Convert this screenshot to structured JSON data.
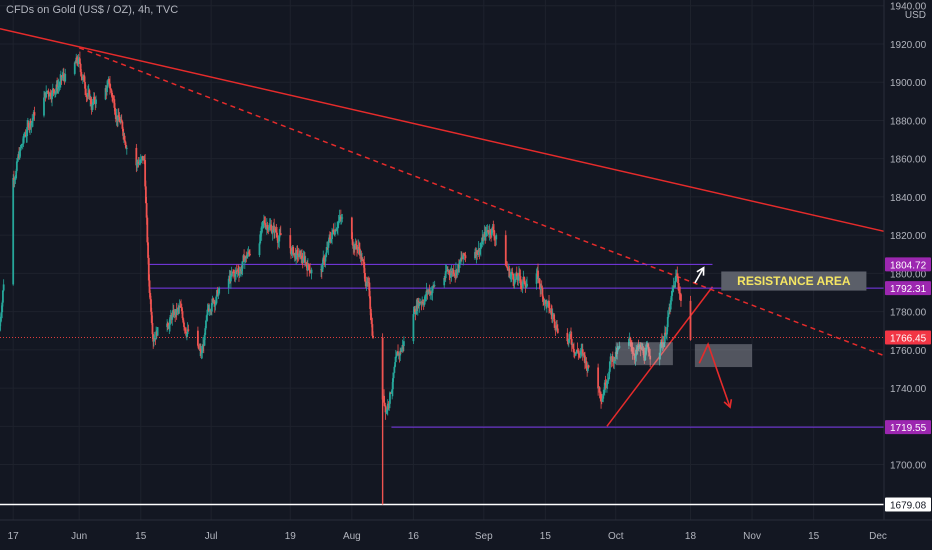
{
  "header": {
    "title": "CFDs on Gold (US$ / OZ), 4h, TVC"
  },
  "currency": "USD",
  "colors": {
    "background": "#131722",
    "grid": "#1e222d",
    "up": "#26a69a",
    "down": "#ef5350",
    "trendline": "#e52b2b",
    "level": "#7c3aed",
    "axis_text": "#b2b5be"
  },
  "chart_data": {
    "type": "candlestick",
    "symbol": "CFDs on Gold (US$ / OZ)",
    "timeframe": "4h",
    "source": "TVC",
    "y_ticks": [
      1700,
      1720,
      1740,
      1760,
      1780,
      1800,
      1820,
      1840,
      1860,
      1880,
      1900,
      1920,
      1940
    ],
    "y_tick_labels": [
      "1700.00",
      "1720.00",
      "1740.00",
      "1760.00",
      "1780.00",
      "1800.00",
      "1820.00",
      "1840.00",
      "1860.00",
      "1880.00",
      "1900.00",
      "1920.00",
      "1940.00"
    ],
    "ylim": [
      1671,
      1943
    ],
    "x_labels": [
      {
        "label": "17",
        "date": "2021-05-17"
      },
      {
        "label": "Jun",
        "date": "2021-06-01"
      },
      {
        "label": "15",
        "date": "2021-06-15"
      },
      {
        "label": "Jul",
        "date": "2021-07-01"
      },
      {
        "label": "19",
        "date": "2021-07-19"
      },
      {
        "label": "Aug",
        "date": "2021-08-02"
      },
      {
        "label": "16",
        "date": "2021-08-16"
      },
      {
        "label": "Sep",
        "date": "2021-09-01"
      },
      {
        "label": "15",
        "date": "2021-09-15"
      },
      {
        "label": "Oct",
        "date": "2021-10-01"
      },
      {
        "label": "18",
        "date": "2021-10-18"
      },
      {
        "label": "Nov",
        "date": "2021-11-01"
      },
      {
        "label": "15",
        "date": "2021-11-15"
      },
      {
        "label": "Dec",
        "date": "2021-12-01"
      }
    ],
    "xlim": [
      "2021-05-14",
      "2021-12-01"
    ],
    "price_path": [
      [
        "2021-05-14",
        1770
      ],
      [
        "2021-05-17",
        1850
      ],
      [
        "2021-05-21",
        1880
      ],
      [
        "2021-05-25",
        1895
      ],
      [
        "2021-05-28",
        1900
      ],
      [
        "2021-06-01",
        1910
      ],
      [
        "2021-06-04",
        1888
      ],
      [
        "2021-06-08",
        1898
      ],
      [
        "2021-06-11",
        1875
      ],
      [
        "2021-06-14",
        1860
      ],
      [
        "2021-06-16",
        1858
      ],
      [
        "2021-06-17",
        1795
      ],
      [
        "2021-06-18",
        1770
      ],
      [
        "2021-06-24",
        1780
      ],
      [
        "2021-06-29",
        1756
      ],
      [
        "2021-07-01",
        1785
      ],
      [
        "2021-07-07",
        1800
      ],
      [
        "2021-07-14",
        1827
      ],
      [
        "2021-07-20",
        1810
      ],
      [
        "2021-07-26",
        1800
      ],
      [
        "2021-07-30",
        1830
      ],
      [
        "2021-08-04",
        1812
      ],
      [
        "2021-08-06",
        1790
      ],
      [
        "2021-08-08",
        1745
      ],
      [
        "2021-08-10",
        1730
      ],
      [
        "2021-08-12",
        1750
      ],
      [
        "2021-08-17",
        1785
      ],
      [
        "2021-08-24",
        1800
      ],
      [
        "2021-08-31",
        1814
      ],
      [
        "2021-09-03",
        1825
      ],
      [
        "2021-09-07",
        1800
      ],
      [
        "2021-09-10",
        1795
      ],
      [
        "2021-09-13",
        1800
      ],
      [
        "2021-09-16",
        1780
      ],
      [
        "2021-09-21",
        1765
      ],
      [
        "2021-09-24",
        1755
      ],
      [
        "2021-09-28",
        1738
      ],
      [
        "2021-09-30",
        1755
      ],
      [
        "2021-10-04",
        1762
      ],
      [
        "2021-10-08",
        1757
      ],
      [
        "2021-10-12",
        1765
      ],
      [
        "2021-10-15",
        1798
      ],
      [
        "2021-10-18",
        1766.45
      ]
    ],
    "flash_wick": {
      "date": "2021-08-09",
      "low": 1679.08
    },
    "horizontal_levels": [
      {
        "value": 1804.72,
        "label": "1804.72",
        "style": "solid-purple",
        "from": "2021-06-17",
        "to": "2021-10-23"
      },
      {
        "value": 1792.31,
        "label": "1792.31",
        "style": "solid-purple",
        "from": "2021-06-17",
        "to": "2021-12-01"
      },
      {
        "value": 1766.45,
        "label": "1766.45",
        "style": "dotted-red",
        "from": "2021-05-14",
        "to": "2021-12-01"
      },
      {
        "value": 1719.55,
        "label": "1719.55",
        "style": "solid-purple",
        "from": "2021-08-11",
        "to": "2021-12-01"
      },
      {
        "value": 1679.08,
        "label": "1679.08",
        "style": "solid-white",
        "from": "2021-05-14",
        "to": "2021-12-01"
      }
    ],
    "trendlines": [
      {
        "from": [
          "2021-05-14",
          1928
        ],
        "to": [
          "2021-12-01",
          1822
        ],
        "style": "solid"
      },
      {
        "from": [
          "2021-06-01",
          1918
        ],
        "to": [
          "2021-12-01",
          1757
        ],
        "style": "dashed"
      },
      {
        "from": [
          "2021-09-29",
          1720
        ],
        "to": [
          "2021-10-23",
          1793
        ],
        "style": "solid"
      }
    ],
    "annotations": [
      {
        "type": "label",
        "text": "RESISTANCE AREA",
        "from_date": "2021-10-25",
        "to_date": "2021-11-27",
        "y_top": 1801,
        "y_bottom": 1791
      },
      {
        "type": "box",
        "from_date": "2021-10-01",
        "to_date": "2021-10-14",
        "y_top": 1764,
        "y_bottom": 1752
      },
      {
        "type": "box",
        "from_date": "2021-10-19",
        "to_date": "2021-11-01",
        "y_top": 1763,
        "y_bottom": 1751
      },
      {
        "type": "arrow",
        "color": "white",
        "path": [
          [
            "2021-10-19",
            1795
          ],
          [
            "2021-10-21",
            1803
          ]
        ]
      },
      {
        "type": "arrow",
        "color": "red",
        "path": [
          [
            "2021-10-20",
            1753
          ],
          [
            "2021-10-22",
            1763
          ],
          [
            "2021-10-25",
            1743
          ],
          [
            "2021-10-27",
            1730
          ]
        ]
      }
    ],
    "price_labels": [
      {
        "value": 1804.72,
        "text": "1804.72",
        "color": "#9c27b0"
      },
      {
        "value": 1800,
        "text": "1800.00",
        "color": "#131722"
      },
      {
        "value": 1792.31,
        "text": "1792.31",
        "color": "#9c27b0"
      },
      {
        "value": 1766.45,
        "text": "1766.45",
        "color": "#f23645"
      },
      {
        "value": 1719.55,
        "text": "1719.55",
        "color": "#9c27b0"
      },
      {
        "value": 1679.08,
        "text": "1679.08",
        "color": "#ffffff"
      }
    ]
  }
}
